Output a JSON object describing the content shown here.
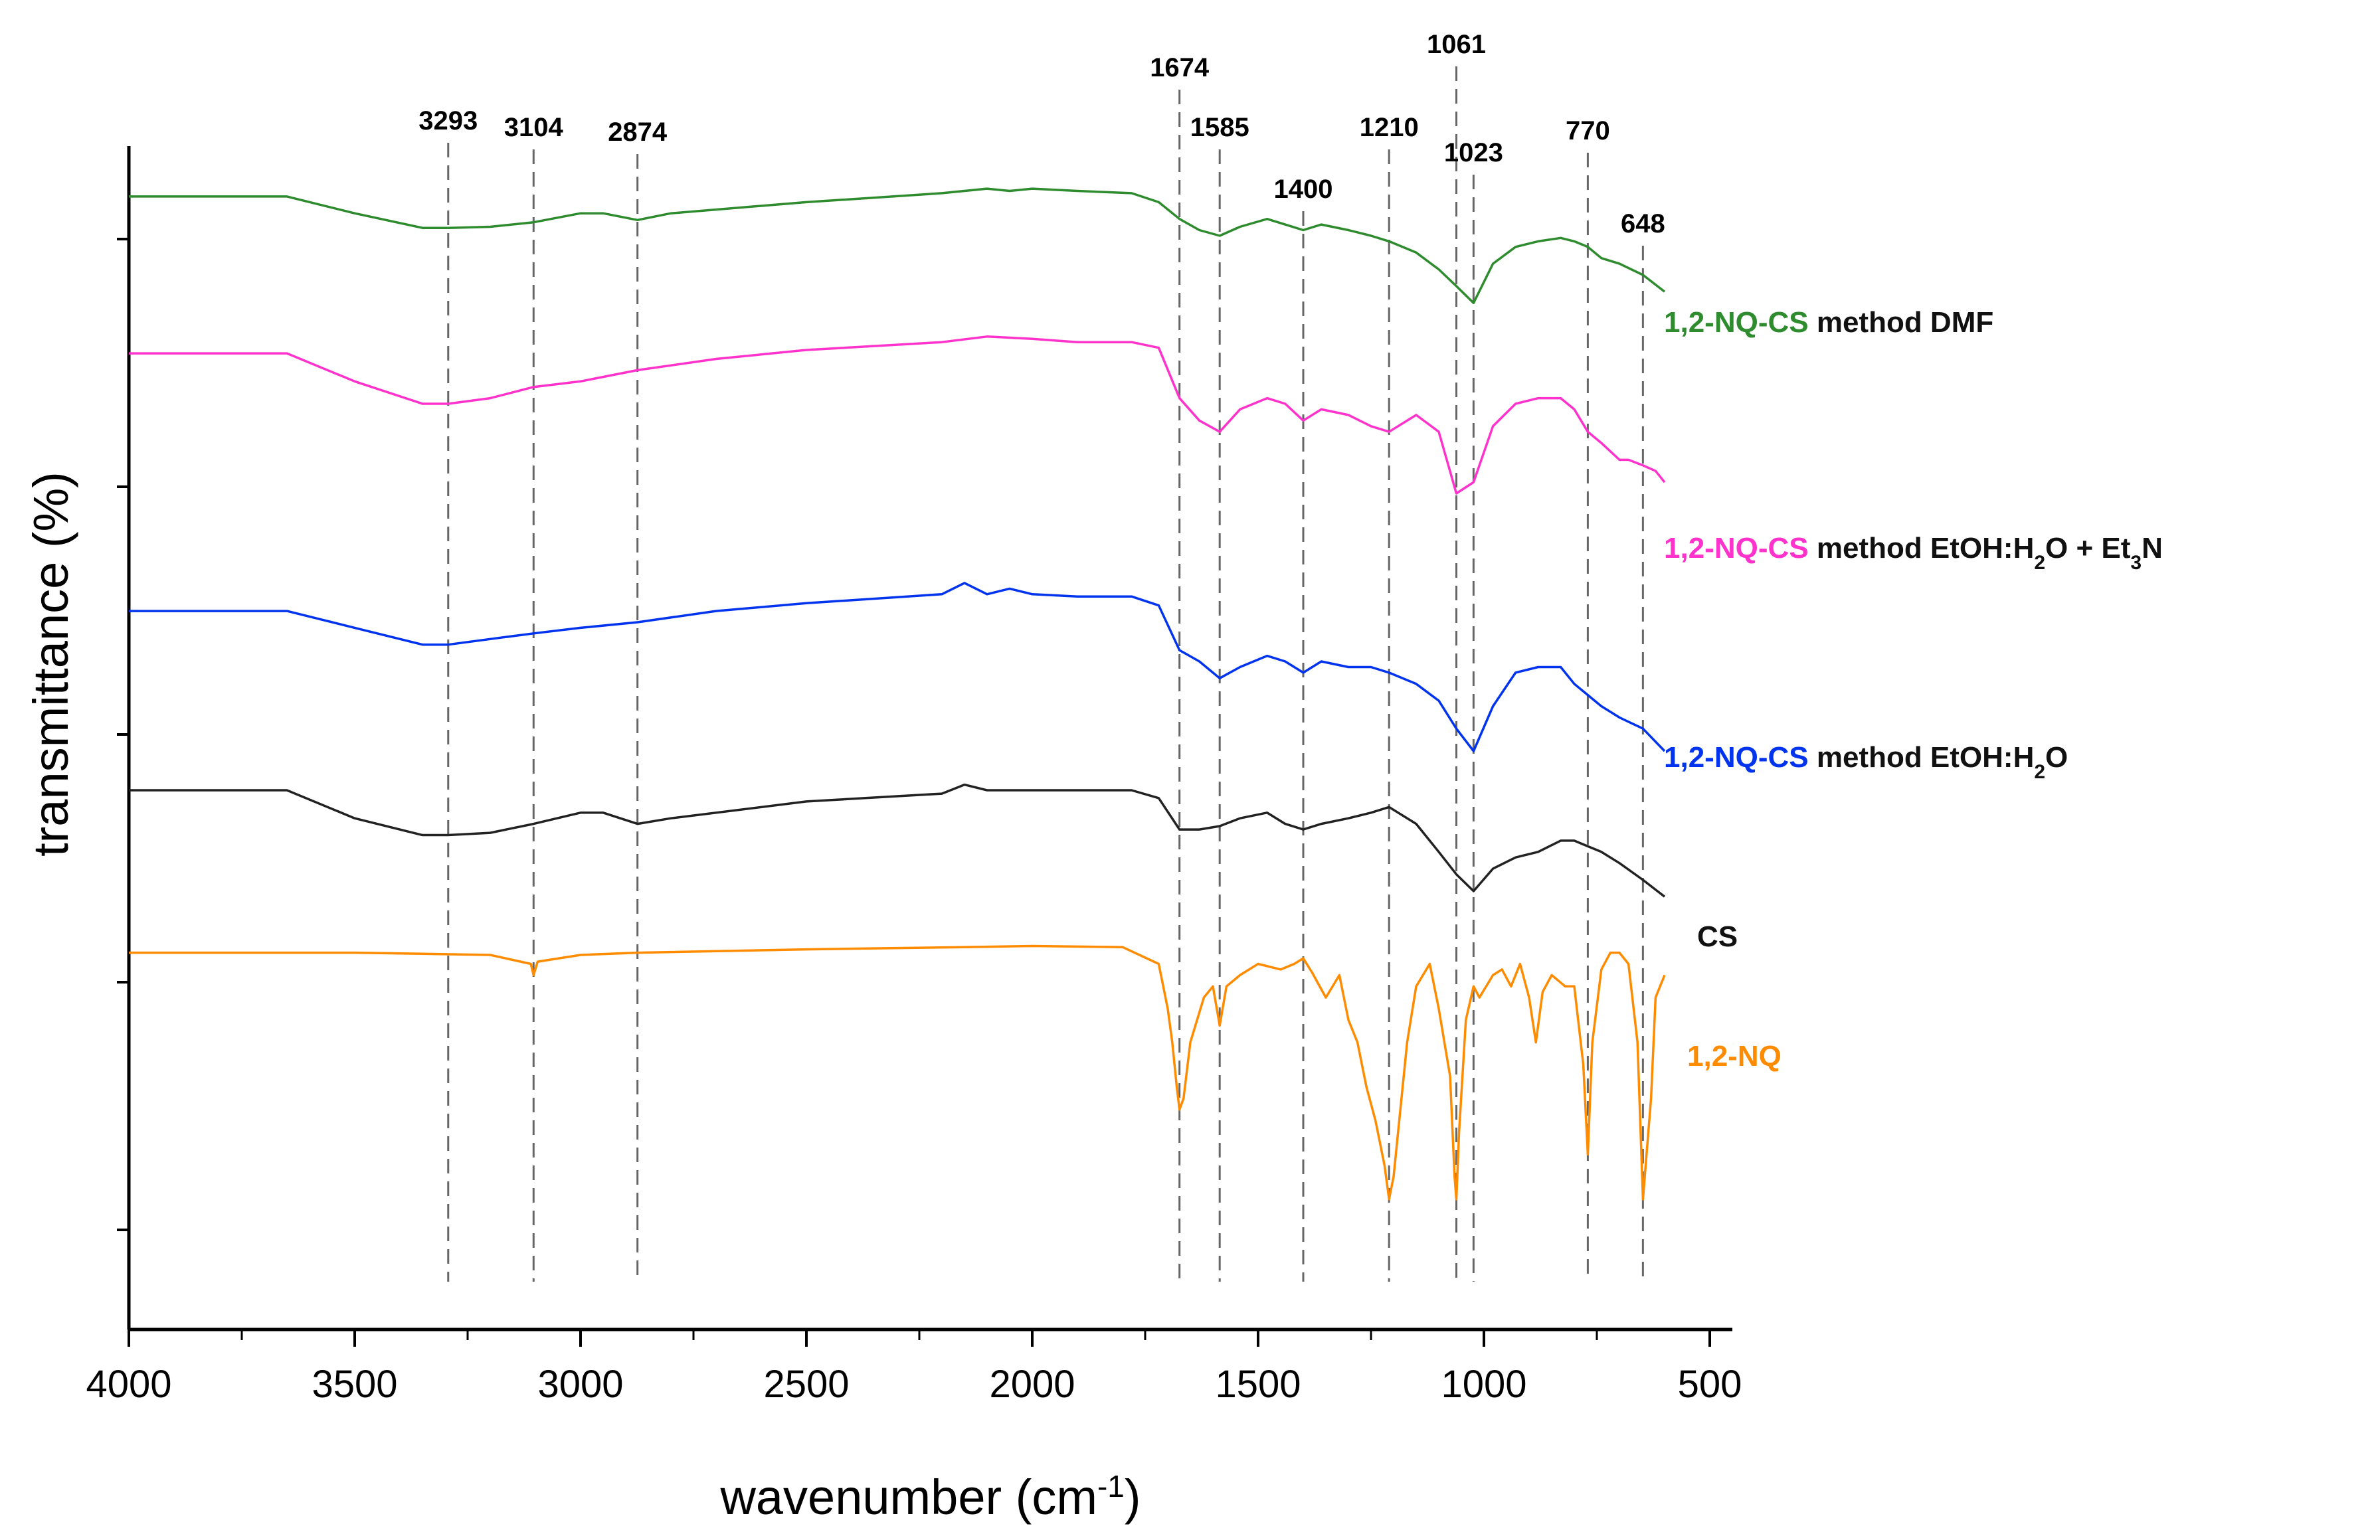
{
  "chart_data": {
    "type": "line",
    "title": "",
    "xlabel": "wavenumber (cm",
    "xlabel_sup": "-1",
    "xlabel_close": ")",
    "ylabel": "transmittance (%)",
    "xlim": [
      4000,
      450
    ],
    "x_reversed": true,
    "ylim": [
      0,
      1
    ],
    "y_ticklabels_shown": false,
    "x_ticks": [
      4000,
      3500,
      3000,
      2500,
      2000,
      1500,
      1000,
      500
    ],
    "x_tick_labels": [
      "4000",
      "3500",
      "3000",
      "2500",
      "2000",
      "1500",
      "1000",
      "500"
    ],
    "reference_lines": [
      {
        "x": 3293,
        "label": "3293",
        "label_level": 1
      },
      {
        "x": 3104,
        "label": "3104",
        "label_level": 1
      },
      {
        "x": 2874,
        "label": "2874",
        "label_level": 1
      },
      {
        "x": 1674,
        "label": "1674",
        "label_level": 3
      },
      {
        "x": 1585,
        "label": "1585",
        "label_level": 2
      },
      {
        "x": 1400,
        "label": "1400",
        "label_level": 0
      },
      {
        "x": 1210,
        "label": "1210",
        "label_level": 2
      },
      {
        "x": 1061,
        "label": "1061",
        "label_level": 4
      },
      {
        "x": 1023,
        "label": "1023",
        "label_level": 1
      },
      {
        "x": 770,
        "label": "770",
        "label_level": 2
      },
      {
        "x": 648,
        "label": "648",
        "label_level": -1
      }
    ],
    "series": [
      {
        "name": "1,2-NQ-CS method DMF",
        "legend_parts": [
          {
            "text": "1,2-NQ-CS",
            "colored": true
          },
          {
            "text": " method DMF",
            "colored": false
          }
        ],
        "color": "#2e8b2e",
        "x": [
          4000,
          3650,
          3500,
          3350,
          3293,
          3200,
          3104,
          3000,
          2950,
          2874,
          2800,
          2500,
          2200,
          2100,
          2050,
          2000,
          1900,
          1780,
          1720,
          1674,
          1630,
          1585,
          1540,
          1480,
          1440,
          1400,
          1360,
          1300,
          1250,
          1210,
          1150,
          1100,
          1061,
          1023,
          980,
          930,
          880,
          830,
          800,
          770,
          740,
          700,
          648,
          600
        ],
        "y": [
          0.955,
          0.955,
          0.94,
          0.927,
          0.927,
          0.928,
          0.932,
          0.94,
          0.94,
          0.934,
          0.94,
          0.95,
          0.958,
          0.962,
          0.96,
          0.962,
          0.96,
          0.958,
          0.95,
          0.935,
          0.925,
          0.92,
          0.928,
          0.935,
          0.93,
          0.925,
          0.93,
          0.925,
          0.92,
          0.915,
          0.905,
          0.89,
          0.875,
          0.86,
          0.895,
          0.91,
          0.915,
          0.918,
          0.915,
          0.91,
          0.9,
          0.895,
          0.885,
          0.87
        ]
      },
      {
        "name": "1,2-NQ-CS method EtOH:H2O + Et3N",
        "legend_parts": [
          {
            "text": "1,2-NQ-CS",
            "colored": true
          },
          {
            "text": " method EtOH:H",
            "colored": false
          },
          {
            "text": "2",
            "colored": false,
            "sub": true
          },
          {
            "text": "O + Et",
            "colored": false
          },
          {
            "text": "3",
            "colored": false,
            "sub": true
          },
          {
            "text": "N",
            "colored": false
          }
        ],
        "color": "#ff33cc",
        "x": [
          4000,
          3650,
          3500,
          3350,
          3293,
          3200,
          3104,
          3000,
          2874,
          2700,
          2500,
          2200,
          2100,
          2000,
          1900,
          1780,
          1720,
          1674,
          1630,
          1585,
          1540,
          1480,
          1440,
          1400,
          1360,
          1300,
          1250,
          1210,
          1150,
          1100,
          1061,
          1023,
          980,
          930,
          880,
          830,
          800,
          770,
          740,
          700,
          680,
          648,
          620,
          600
        ],
        "y": [
          0.815,
          0.815,
          0.79,
          0.77,
          0.77,
          0.775,
          0.785,
          0.79,
          0.8,
          0.81,
          0.818,
          0.825,
          0.83,
          0.828,
          0.825,
          0.825,
          0.82,
          0.775,
          0.755,
          0.745,
          0.765,
          0.775,
          0.77,
          0.755,
          0.765,
          0.76,
          0.75,
          0.745,
          0.76,
          0.745,
          0.69,
          0.7,
          0.75,
          0.77,
          0.775,
          0.775,
          0.765,
          0.745,
          0.735,
          0.72,
          0.72,
          0.715,
          0.71,
          0.7
        ]
      },
      {
        "name": "1,2-NQ-CS method EtOH:H2O",
        "legend_parts": [
          {
            "text": "1,2-NQ-CS",
            "colored": true
          },
          {
            "text": " method EtOH:H",
            "colored": false
          },
          {
            "text": "2",
            "colored": false,
            "sub": true
          },
          {
            "text": "O",
            "colored": false
          }
        ],
        "color": "#0033ee",
        "x": [
          4000,
          3650,
          3500,
          3350,
          3293,
          3200,
          3104,
          3000,
          2874,
          2700,
          2500,
          2200,
          2150,
          2100,
          2050,
          2000,
          1900,
          1780,
          1720,
          1674,
          1630,
          1585,
          1540,
          1480,
          1440,
          1400,
          1360,
          1300,
          1250,
          1210,
          1150,
          1100,
          1061,
          1023,
          980,
          930,
          880,
          830,
          800,
          770,
          740,
          700,
          648,
          600
        ],
        "y": [
          0.585,
          0.585,
          0.57,
          0.555,
          0.555,
          0.56,
          0.565,
          0.57,
          0.575,
          0.585,
          0.592,
          0.6,
          0.61,
          0.6,
          0.605,
          0.6,
          0.598,
          0.598,
          0.59,
          0.55,
          0.54,
          0.525,
          0.535,
          0.545,
          0.54,
          0.53,
          0.54,
          0.535,
          0.535,
          0.53,
          0.52,
          0.505,
          0.48,
          0.46,
          0.5,
          0.53,
          0.535,
          0.535,
          0.52,
          0.51,
          0.5,
          0.49,
          0.48,
          0.46
        ]
      },
      {
        "name": "CS",
        "legend_parts": [
          {
            "text": "CS",
            "colored": false
          }
        ],
        "color": "#222222",
        "x": [
          4000,
          3650,
          3500,
          3350,
          3293,
          3200,
          3104,
          3000,
          2950,
          2874,
          2800,
          2500,
          2200,
          2150,
          2100,
          2000,
          1900,
          1780,
          1720,
          1674,
          1630,
          1585,
          1540,
          1480,
          1440,
          1400,
          1360,
          1300,
          1250,
          1210,
          1150,
          1100,
          1061,
          1023,
          980,
          930,
          880,
          830,
          800,
          770,
          740,
          700,
          648,
          600
        ],
        "y": [
          0.425,
          0.425,
          0.4,
          0.385,
          0.385,
          0.387,
          0.395,
          0.405,
          0.405,
          0.395,
          0.4,
          0.415,
          0.422,
          0.43,
          0.425,
          0.425,
          0.425,
          0.425,
          0.418,
          0.39,
          0.39,
          0.393,
          0.4,
          0.405,
          0.395,
          0.39,
          0.395,
          0.4,
          0.405,
          0.41,
          0.395,
          0.37,
          0.35,
          0.335,
          0.355,
          0.365,
          0.37,
          0.38,
          0.38,
          0.375,
          0.37,
          0.36,
          0.345,
          0.33
        ]
      },
      {
        "name": "1,2-NQ",
        "legend_parts": [
          {
            "text": "1,2-NQ",
            "colored": true
          }
        ],
        "color": "#ff8c00",
        "x": [
          4000,
          3500,
          3200,
          3110,
          3104,
          3095,
          3000,
          2874,
          2500,
          2150,
          2000,
          1800,
          1720,
          1700,
          1690,
          1680,
          1674,
          1665,
          1650,
          1620,
          1600,
          1585,
          1570,
          1540,
          1500,
          1450,
          1420,
          1400,
          1380,
          1350,
          1320,
          1300,
          1280,
          1260,
          1240,
          1220,
          1210,
          1200,
          1185,
          1170,
          1150,
          1120,
          1100,
          1075,
          1065,
          1061,
          1055,
          1040,
          1023,
          1010,
          980,
          960,
          940,
          920,
          900,
          885,
          870,
          850,
          820,
          800,
          780,
          770,
          760,
          740,
          720,
          700,
          680,
          660,
          648,
          640,
          630,
          620,
          600
        ],
        "y": [
          0.28,
          0.28,
          0.278,
          0.27,
          0.26,
          0.272,
          0.278,
          0.28,
          0.283,
          0.285,
          0.286,
          0.285,
          0.27,
          0.23,
          0.2,
          0.16,
          0.14,
          0.15,
          0.2,
          0.24,
          0.25,
          0.215,
          0.25,
          0.26,
          0.27,
          0.265,
          0.27,
          0.275,
          0.262,
          0.24,
          0.26,
          0.22,
          0.2,
          0.16,
          0.13,
          0.09,
          0.06,
          0.08,
          0.14,
          0.2,
          0.25,
          0.27,
          0.23,
          0.17,
          0.08,
          0.06,
          0.12,
          0.22,
          0.25,
          0.24,
          0.26,
          0.265,
          0.25,
          0.27,
          0.24,
          0.2,
          0.245,
          0.26,
          0.25,
          0.25,
          0.18,
          0.1,
          0.2,
          0.265,
          0.28,
          0.28,
          0.27,
          0.2,
          0.06,
          0.1,
          0.15,
          0.24,
          0.26
        ]
      }
    ]
  }
}
